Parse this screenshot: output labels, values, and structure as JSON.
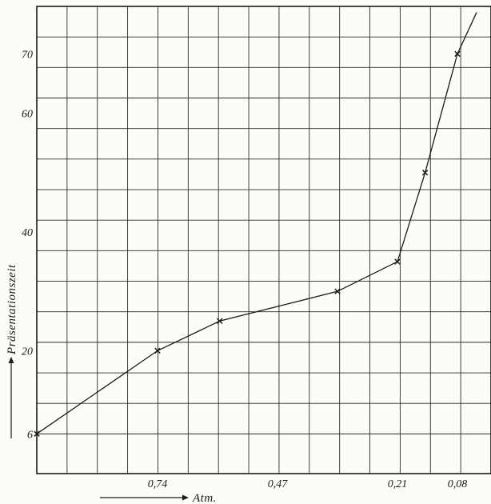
{
  "chart_data": {
    "type": "line",
    "title": "",
    "xlabel": "Atm.",
    "ylabel": "Präsentationszeit",
    "x_tick_labels": [
      "0,74",
      "0,47",
      "0,21",
      "0,08"
    ],
    "y_tick_labels": [
      "6",
      "20",
      "40",
      "60",
      "70"
    ],
    "y_tick_values": [
      6,
      20,
      40,
      60,
      70
    ],
    "series": [
      {
        "points": [
          {
            "x": 1.0,
            "y": 6
          },
          {
            "x": 0.74,
            "y": 20
          },
          {
            "x": 0.6,
            "y": 25
          },
          {
            "x": 0.34,
            "y": 30
          },
          {
            "x": 0.21,
            "y": 35
          },
          {
            "x": 0.15,
            "y": 50
          },
          {
            "x": 0.08,
            "y": 70
          }
        ],
        "extension": {
          "x": 0.06,
          "y": 77
        }
      }
    ],
    "xlim": [
      1.0,
      0.045
    ],
    "ylim": [
      -0.7,
      78
    ],
    "grid": true,
    "color": "#1a1a1a"
  }
}
